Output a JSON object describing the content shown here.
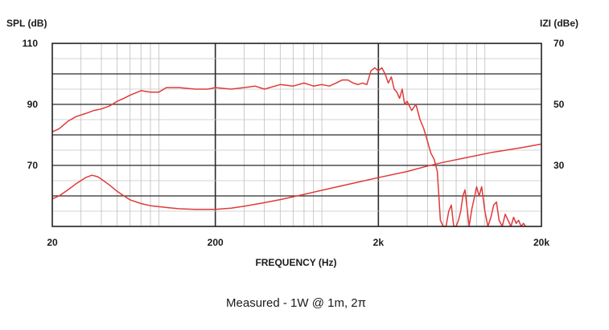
{
  "chart_data": {
    "type": "line",
    "xlabel": "FREQUENCY (Hz)",
    "ylabel_left": "SPL (dB)",
    "ylabel_right": "IZI (dBe)",
    "caption": "Measured - 1W @ 1m, 2π",
    "x_scale": "log",
    "xlim": [
      20,
      20000
    ],
    "ylim_left": [
      50,
      110
    ],
    "ylim_right": [
      10,
      70
    ],
    "grid": true,
    "x_ticks": [
      {
        "value": 20,
        "label": "20"
      },
      {
        "value": 200,
        "label": "200"
      },
      {
        "value": 2000,
        "label": "2k"
      },
      {
        "value": 20000,
        "label": "20k"
      }
    ],
    "y_ticks_left": [
      {
        "value": 110,
        "label": "110"
      },
      {
        "value": 90,
        "label": "90"
      },
      {
        "value": 70,
        "label": "70"
      }
    ],
    "y_ticks_right": [
      {
        "value": 70,
        "label": "70"
      },
      {
        "value": 50,
        "label": "50"
      },
      {
        "value": 30,
        "label": "30"
      }
    ],
    "line_color": "#e03a3a",
    "series": [
      {
        "axis": "left",
        "x": [
          20,
          22,
          25,
          28,
          32,
          36,
          40,
          45,
          50,
          55,
          60,
          70,
          80,
          90,
          100,
          120,
          150,
          180,
          200,
          250,
          300,
          350,
          400,
          500,
          600,
          700,
          800,
          900,
          1000,
          1100,
          1200,
          1300,
          1400,
          1500,
          1600,
          1700,
          1800,
          1900,
          2000,
          2100,
          2200,
          2300,
          2400,
          2500,
          2600,
          2700,
          2800,
          2900,
          3000,
          3200,
          3400,
          3600,
          3800,
          4000,
          4200,
          4400,
          4600,
          4800,
          5000,
          5200,
          5400,
          5600,
          5800,
          6000,
          6200,
          6400,
          6600,
          6800,
          7000,
          7200,
          7500,
          7800,
          8000,
          8300,
          8600,
          9000,
          9400,
          9800,
          10200,
          10600,
          11000,
          11500,
          12000,
          12500,
          13000,
          13500,
          14000,
          14500,
          15000,
          15500,
          16000
        ],
        "values": [
          81,
          82,
          84.5,
          86,
          87,
          88,
          88.5,
          89.5,
          91,
          92,
          93,
          94.5,
          94,
          94,
          95.5,
          95.5,
          95,
          95,
          95.5,
          95,
          95.5,
          96,
          95,
          96.5,
          96,
          97,
          96,
          96.5,
          96,
          97,
          98,
          98,
          97,
          96.5,
          97,
          96.5,
          101,
          102,
          101,
          102,
          100,
          97,
          99,
          95,
          94,
          92,
          95,
          90,
          91,
          88,
          90,
          85,
          82,
          78,
          74,
          72,
          68,
          52,
          50,
          50,
          55,
          57,
          50,
          50,
          52,
          55,
          60,
          62,
          56,
          50,
          56,
          60,
          63,
          60,
          63,
          55,
          50,
          53,
          57,
          58,
          52,
          50,
          54,
          52,
          50,
          53,
          51,
          52,
          50,
          51,
          50
        ]
      },
      {
        "axis": "right",
        "x": [
          20,
          22,
          25,
          28,
          32,
          35,
          38,
          40,
          45,
          50,
          55,
          60,
          70,
          80,
          100,
          120,
          150,
          200,
          250,
          300,
          400,
          500,
          700,
          1000,
          1500,
          2000,
          3000,
          4000,
          5000,
          7000,
          10000,
          15000,
          20000
        ],
        "values": [
          19,
          20,
          22,
          24,
          26,
          26.8,
          26.3,
          25.5,
          23.5,
          21.5,
          20,
          18.7,
          17.5,
          16.8,
          16.2,
          15.8,
          15.6,
          15.6,
          16,
          16.6,
          17.8,
          18.8,
          20.5,
          22.4,
          24.5,
          26,
          28,
          29.8,
          31,
          32.6,
          34.3,
          35.8,
          37
        ]
      }
    ]
  }
}
